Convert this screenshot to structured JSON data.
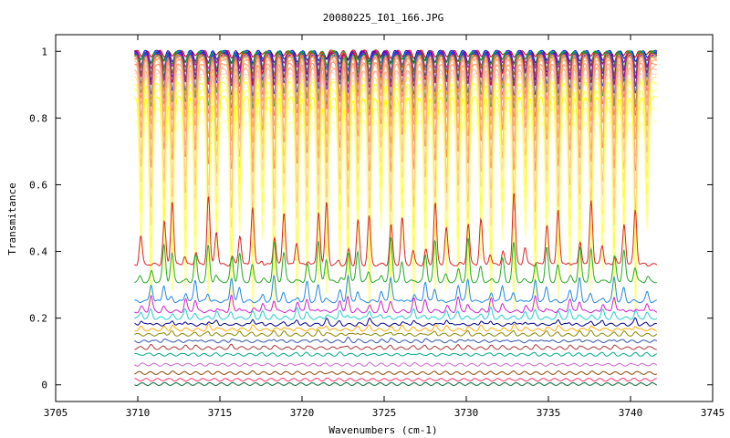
{
  "chart_data": {
    "type": "line",
    "title": "20080225_I01_166.JPG",
    "xlabel": "Wavenumbers (cm-1)",
    "ylabel": "Transmitance",
    "xlim": [
      3705,
      3745
    ],
    "ylim": [
      -0.05,
      1.05
    ],
    "x_ticks": [
      3705,
      3710,
      3715,
      3720,
      3725,
      3730,
      3735,
      3740,
      3745
    ],
    "x_tick_labels": [
      "3705",
      "3710",
      "3715",
      "3720",
      "3725",
      "3730",
      "3735",
      "3740",
      "3745"
    ],
    "y_ticks": [
      0,
      0.2,
      0.4,
      0.6,
      0.8,
      1
    ],
    "y_tick_labels": [
      "0",
      "0.2",
      "0.4",
      "0.6",
      "0.8",
      "1"
    ],
    "x_range": [
      3709.8,
      3741.6
    ],
    "grid": false,
    "legend": "none",
    "absorption_lines": [
      3710.2,
      3710.8,
      3711.6,
      3712.1,
      3712.9,
      3713.5,
      3714.3,
      3714.8,
      3715.7,
      3716.2,
      3717.0,
      3717.6,
      3718.3,
      3718.9,
      3719.7,
      3720.3,
      3721.0,
      3721.5,
      3722.3,
      3722.8,
      3723.4,
      3724.1,
      3724.8,
      3725.4,
      3726.1,
      3726.8,
      3727.5,
      3728.1,
      3728.8,
      3729.5,
      3730.1,
      3730.9,
      3731.5,
      3732.2,
      3732.9,
      3733.6,
      3734.2,
      3734.9,
      3735.6,
      3736.3,
      3736.9,
      3737.6,
      3738.3,
      3739.0,
      3739.6,
      3740.3,
      3741.0
    ],
    "series": [
      {
        "baseline": 1.0,
        "depth": 0.02,
        "color": "#cc0000"
      },
      {
        "baseline": 0.999,
        "depth": 0.03,
        "color": "#0000cc"
      },
      {
        "baseline": 0.998,
        "depth": 0.04,
        "color": "#00aa00"
      },
      {
        "baseline": 0.997,
        "depth": 0.05,
        "color": "#aa00aa"
      },
      {
        "baseline": 0.996,
        "depth": 0.06,
        "color": "#0088cc"
      },
      {
        "baseline": 0.995,
        "depth": 0.07,
        "color": "#cc6600"
      },
      {
        "baseline": 0.994,
        "depth": 0.08,
        "color": "#6600cc"
      },
      {
        "baseline": 0.993,
        "depth": 0.09,
        "color": "#009966"
      },
      {
        "baseline": 0.992,
        "depth": 0.1,
        "color": "#cc0066"
      },
      {
        "baseline": 0.99,
        "depth": 0.12,
        "color": "#3333ff"
      },
      {
        "baseline": 0.988,
        "depth": 0.14,
        "color": "#ff9933"
      },
      {
        "baseline": 0.986,
        "depth": 0.16,
        "color": "#33aa33"
      },
      {
        "baseline": 0.984,
        "depth": 0.18,
        "color": "#ff6666"
      },
      {
        "baseline": 0.98,
        "depth": 0.21,
        "color": "#ffaa66"
      },
      {
        "baseline": 0.976,
        "depth": 0.25,
        "color": "#ff9966"
      },
      {
        "baseline": 0.97,
        "depth": 0.29,
        "color": "#ffbb88"
      },
      {
        "baseline": 0.964,
        "depth": 0.33,
        "color": "#ff8866"
      },
      {
        "baseline": 0.955,
        "depth": 0.38,
        "color": "#ffcc99"
      },
      {
        "baseline": 0.945,
        "depth": 0.43,
        "color": "#ffaa88"
      },
      {
        "baseline": 0.935,
        "depth": 0.48,
        "color": "#ffcccc"
      },
      {
        "baseline": 0.92,
        "depth": 0.53,
        "color": "#ffee66"
      },
      {
        "baseline": 0.905,
        "depth": 0.58,
        "color": "#ffff33"
      },
      {
        "baseline": 0.885,
        "depth": 0.62,
        "color": "#ffff66"
      },
      {
        "baseline": 0.86,
        "depth": 0.64,
        "color": "#ffff00"
      },
      {
        "baseline": 0.83,
        "depth": 0.62,
        "color": "#ffff99"
      },
      {
        "baseline": 0.79,
        "depth": 0.58,
        "color": "#ffffaa"
      },
      {
        "baseline": 0.36,
        "depth": -0.22,
        "color": "#dd2222"
      },
      {
        "baseline": 0.31,
        "depth": -0.14,
        "color": "#22aa22"
      },
      {
        "baseline": 0.25,
        "depth": -0.08,
        "color": "#2288dd"
      },
      {
        "baseline": 0.22,
        "depth": -0.05,
        "color": "#cc22cc"
      },
      {
        "baseline": 0.2,
        "depth": -0.03,
        "color": "#22cccc"
      },
      {
        "baseline": 0.18,
        "depth": -0.02,
        "color": "#000088"
      },
      {
        "baseline": 0.165,
        "depth": -0.015,
        "color": "#ffaa00"
      },
      {
        "baseline": 0.15,
        "depth": -0.012,
        "color": "#888800"
      },
      {
        "baseline": 0.13,
        "depth": -0.01,
        "color": "#3355aa"
      },
      {
        "baseline": 0.11,
        "depth": -0.008,
        "color": "#aa3333"
      },
      {
        "baseline": 0.09,
        "depth": -0.006,
        "color": "#00aa88"
      },
      {
        "baseline": 0.06,
        "depth": -0.004,
        "color": "#cc66cc"
      },
      {
        "baseline": 0.035,
        "depth": -0.003,
        "color": "#884400"
      },
      {
        "baseline": 0.015,
        "depth": -0.002,
        "color": "#ff3366"
      },
      {
        "baseline": 0.002,
        "depth": -0.001,
        "color": "#006633"
      }
    ]
  }
}
